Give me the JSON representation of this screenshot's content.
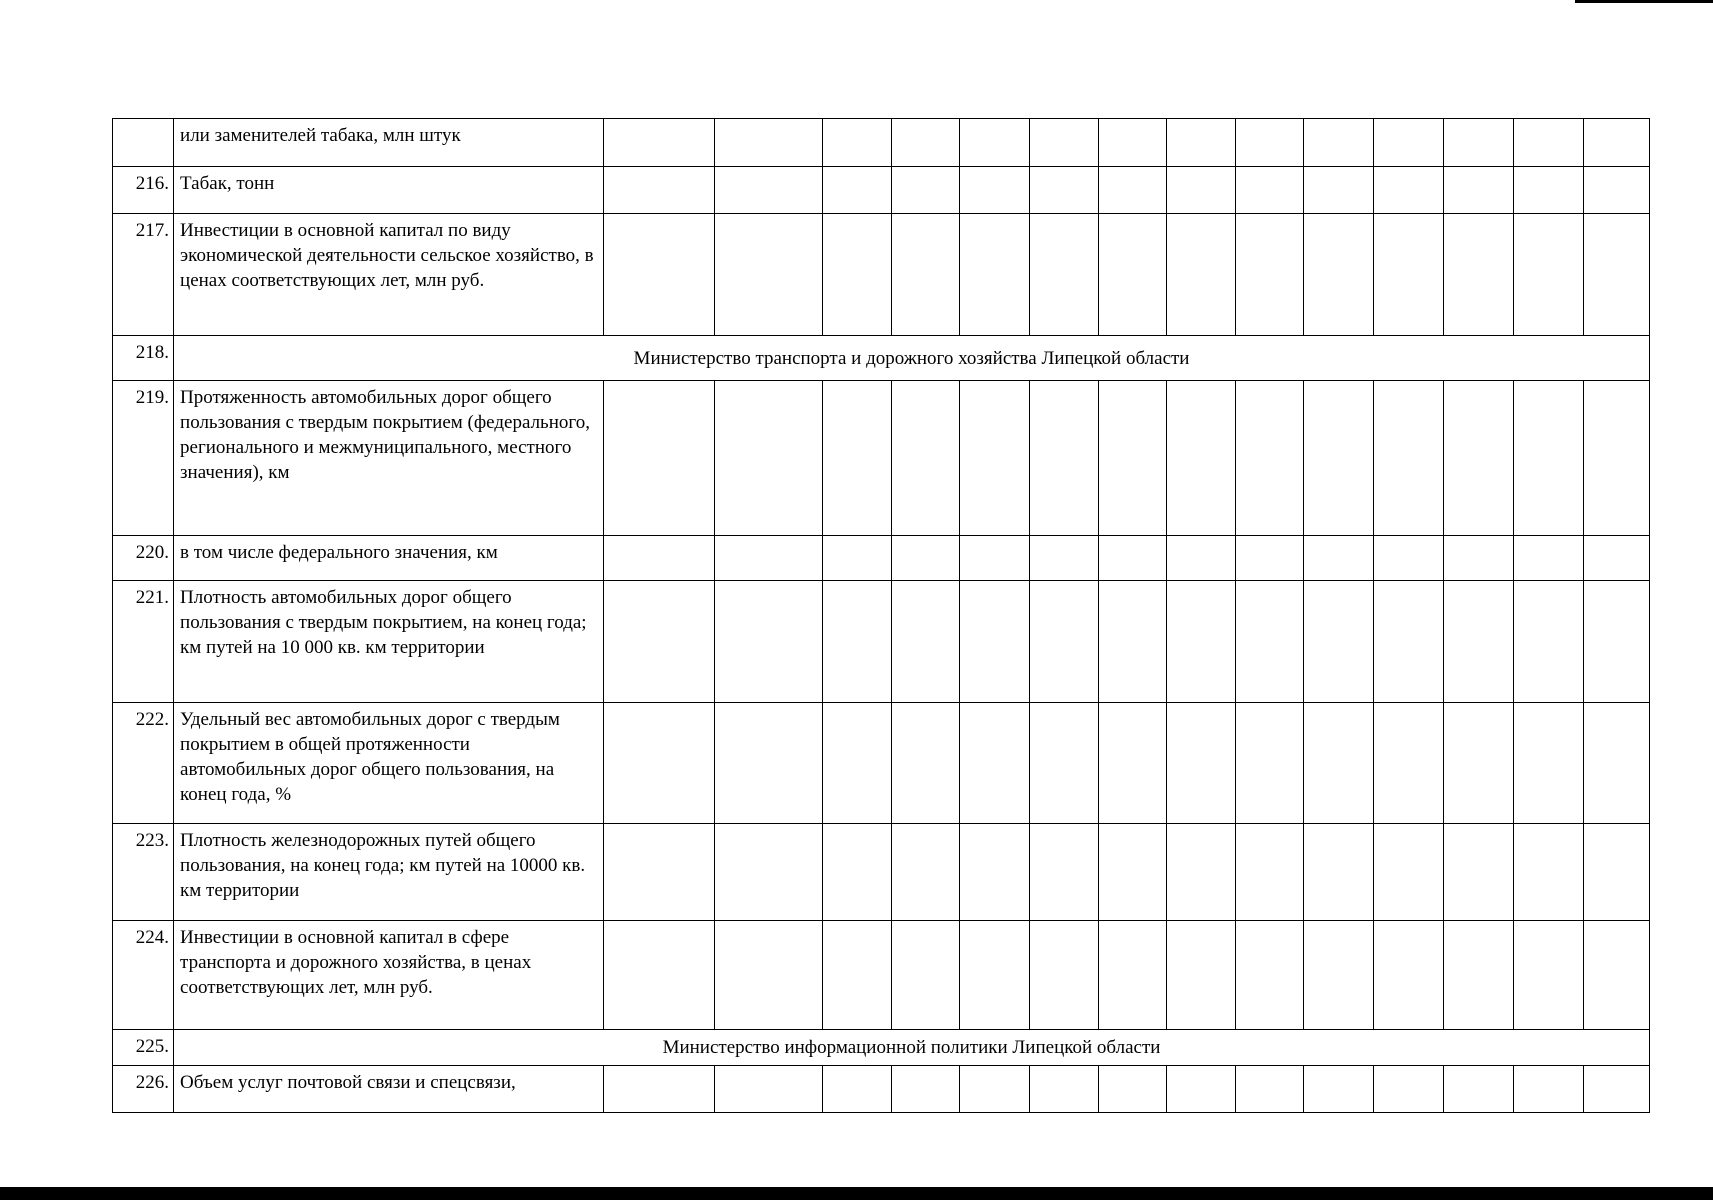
{
  "rows": [
    {
      "num": "",
      "text": "или заменителей табака, млн штук"
    },
    {
      "num": "216.",
      "text": "Табак, тонн"
    },
    {
      "num": "217.",
      "text": "Инвестиции в основной капитал по виду экономической деятельности сельское хозяйство, в ценах соответствующих лет, млн руб."
    },
    {
      "num": "218.",
      "heading": "Министерство транспорта и дорожного хозяйства Липецкой области"
    },
    {
      "num": "219.",
      "text": "Протяженность автомобильных дорог общего пользования с твердым покрытием (федерального, регионального и межмуниципального, местного значения), км"
    },
    {
      "num": "220.",
      "text": "в том числе федерального значения, км"
    },
    {
      "num": "221.",
      "text": "Плотность автомобильных дорог общего пользования с твердым покрытием, на конец года; км путей на 10 000 кв. км территории"
    },
    {
      "num": "222.",
      "text": "Удельный вес автомобильных дорог с твердым покрытием в общей протяженности автомобильных дорог общего пользования, на конец года, %"
    },
    {
      "num": "223.",
      "text": "Плотность железнодорожных путей общего пользования, на конец года; км путей на 10000 кв. км территории"
    },
    {
      "num": "224.",
      "text": "Инвестиции в основной капитал в сфере транспорта и дорожного хозяйства, в ценах соответствующих лет, млн руб."
    },
    {
      "num": "225.",
      "heading": "Министерство информационной политики Липецкой области"
    },
    {
      "num": "226.",
      "text": "Объем услуг почтовой связи и спецсвязи,"
    }
  ]
}
